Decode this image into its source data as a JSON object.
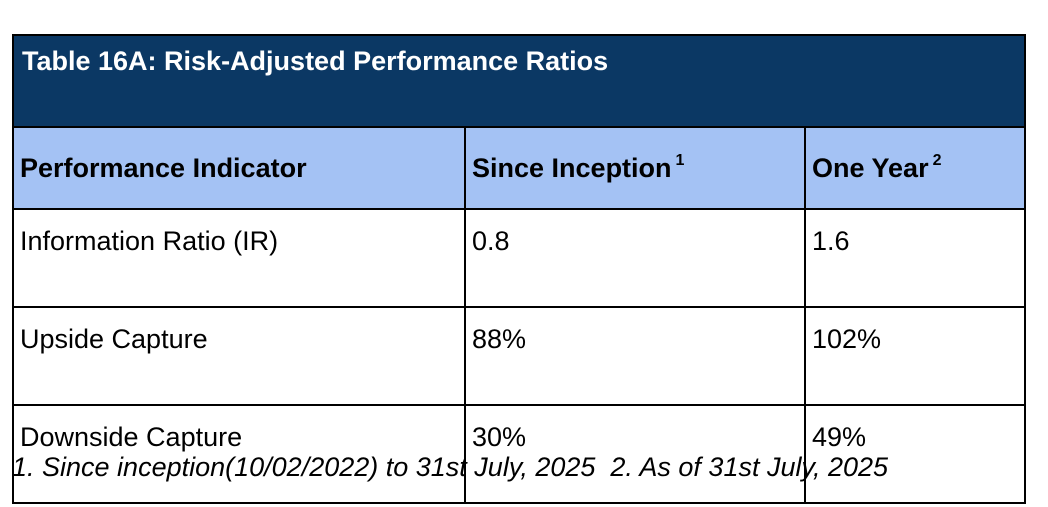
{
  "table": {
    "title": "Table 16A: Risk-Adjusted Performance Ratios",
    "headers": [
      {
        "label": "Performance Indicator",
        "sup": ""
      },
      {
        "label": "Since Inception",
        "sup": "1"
      },
      {
        "label": "One Year",
        "sup": "2"
      }
    ],
    "rows": [
      [
        "Information Ratio (IR)",
        "0.8",
        "1.6"
      ],
      [
        "Upside Capture",
        "88%",
        "102%"
      ],
      [
        "Downside Capture",
        "30%",
        "49%"
      ]
    ]
  },
  "footnote": "1. Since inception(10/02/2022) to 31st July, 2025  2. As of 31st July, 2025",
  "colors": {
    "title_bg": "#0b3864",
    "header_bg": "#a4c2f4",
    "title_text": "#ffffff"
  }
}
